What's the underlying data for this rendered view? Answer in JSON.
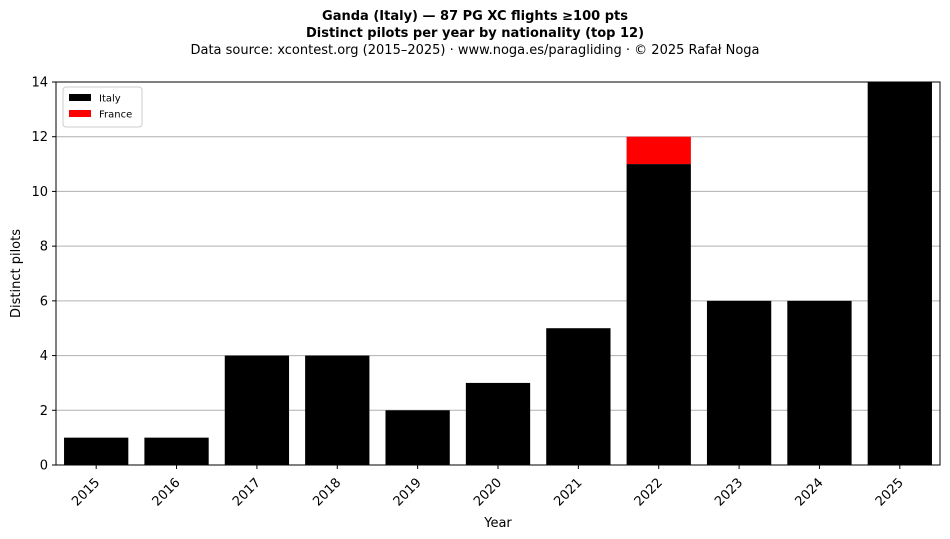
{
  "chart_data": {
    "type": "bar",
    "stacked": true,
    "title": "Ganda (Italy)  —  87 PG XC flights ≥100 pts",
    "subtitle": "Distinct pilots per year by nationality (top 12)",
    "source_line": "Data source: xcontest.org (2015–2025)  ·  www.noga.es/paragliding  ·  © 2025 Rafał Noga",
    "xlabel": "Year",
    "ylabel": "Distinct pilots",
    "categories": [
      "2015",
      "2016",
      "2017",
      "2018",
      "2019",
      "2020",
      "2021",
      "2022",
      "2023",
      "2024",
      "2025"
    ],
    "series": [
      {
        "name": "Italy",
        "color": "#000000",
        "values": [
          1,
          1,
          4,
          4,
          2,
          3,
          5,
          11,
          6,
          6,
          14
        ]
      },
      {
        "name": "France",
        "color": "#ff0000",
        "values": [
          0,
          0,
          0,
          0,
          0,
          0,
          0,
          1,
          0,
          0,
          0
        ]
      }
    ],
    "ylim": [
      0,
      14
    ],
    "yticks": [
      0,
      2,
      4,
      6,
      8,
      10,
      12,
      14
    ],
    "grid": "y-axis",
    "legend_position": "top-left"
  }
}
